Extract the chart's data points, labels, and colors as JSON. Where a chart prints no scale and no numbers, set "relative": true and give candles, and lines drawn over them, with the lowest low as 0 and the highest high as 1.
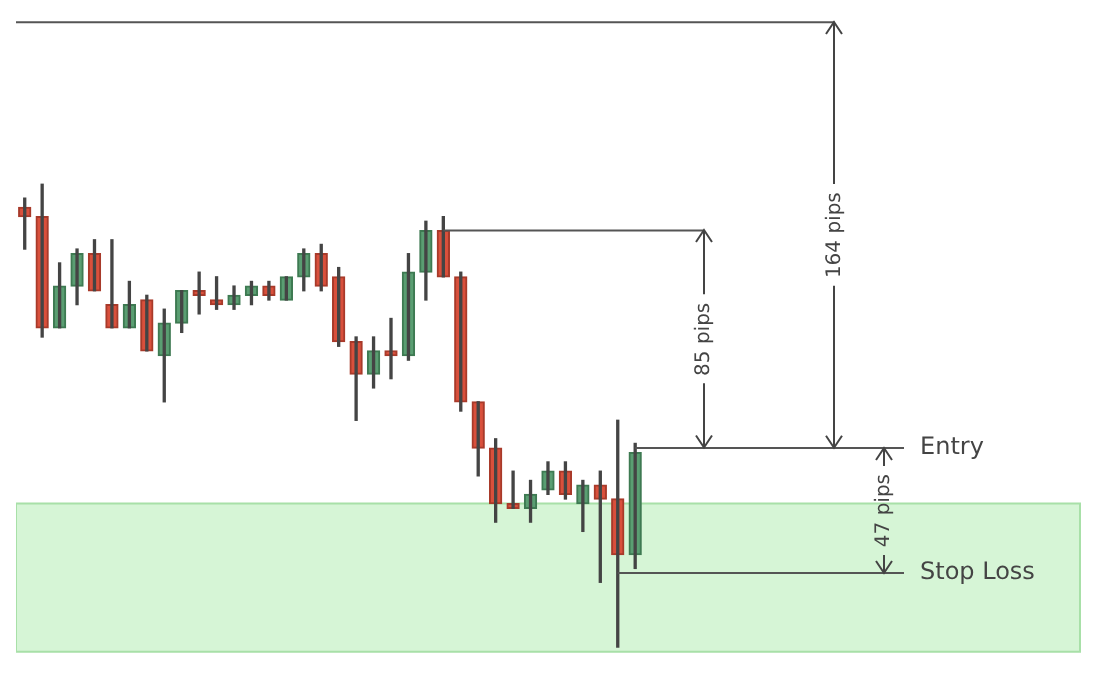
{
  "chart_data": {
    "type": "candlestick",
    "relative": true,
    "categories": [
      null,
      null,
      null,
      null,
      null,
      null,
      null,
      null,
      null,
      null,
      null,
      null,
      null,
      null,
      null,
      null,
      null,
      null,
      null,
      null,
      null,
      null,
      null,
      null,
      null,
      null,
      null,
      null,
      null,
      null,
      null,
      null,
      null,
      null,
      null,
      null
    ],
    "ohlc": [
      [
        0.95,
        0.97,
        0.86,
        0.93
      ],
      [
        0.93,
        1,
        0.67,
        0.69
      ],
      [
        0.69,
        0.83,
        0.69,
        0.78
      ],
      [
        0.78,
        0.86,
        0.74,
        0.85
      ],
      [
        0.85,
        0.88,
        0.77,
        0.77
      ],
      [
        0.74,
        0.88,
        0.69,
        0.69
      ],
      [
        0.69,
        0.79,
        0.69,
        0.74
      ],
      [
        0.75,
        0.76,
        0.64,
        0.64
      ],
      [
        0.63,
        0.73,
        0.53,
        0.7
      ],
      [
        0.7,
        0.77,
        0.68,
        0.77
      ],
      [
        0.77,
        0.81,
        0.72,
        0.76
      ],
      [
        0.75,
        0.8,
        0.73,
        0.74
      ],
      [
        0.74,
        0.78,
        0.73,
        0.76
      ],
      [
        0.76,
        0.79,
        0.74,
        0.78
      ],
      [
        0.78,
        0.79,
        0.75,
        0.76
      ],
      [
        0.75,
        0.8,
        0.75,
        0.8
      ],
      [
        0.8,
        0.86,
        0.77,
        0.85
      ],
      [
        0.85,
        0.87,
        0.77,
        0.78
      ],
      [
        0.8,
        0.82,
        0.65,
        0.66
      ],
      [
        0.66,
        0.67,
        0.49,
        0.59
      ],
      [
        0.59,
        0.67,
        0.56,
        0.64
      ],
      [
        0.64,
        0.71,
        0.58,
        0.63
      ],
      [
        0.63,
        0.85,
        0.62,
        0.81
      ],
      [
        0.81,
        0.92,
        0.75,
        0.9
      ],
      [
        0.9,
        0.93,
        0.8,
        0.8
      ],
      [
        0.8,
        0.81,
        0.51,
        0.53
      ],
      [
        0.53,
        0.53,
        0.37,
        0.43
      ],
      [
        0.43,
        0.45,
        0.27,
        0.31
      ],
      [
        0.31,
        0.38,
        0.3,
        0.3
      ],
      [
        0.3,
        0.36,
        0.27,
        0.33
      ],
      [
        0.34,
        0.4,
        0.33,
        0.38
      ],
      [
        0.38,
        0.4,
        0.32,
        0.33
      ],
      [
        0.31,
        0.36,
        0.25,
        0.35
      ],
      [
        0.35,
        0.38,
        0.14,
        0.32
      ],
      [
        0.32,
        0.49,
        0,
        0.2
      ],
      [
        0.2,
        0.44,
        0.17,
        0.42
      ]
    ],
    "ref_lines": [
      {
        "axis": "y",
        "value": 0.9,
        "color": "#555555"
      },
      {
        "axis": "y",
        "value": 1.35,
        "color": "#555555"
      },
      {
        "axis": "y",
        "value": 0.43,
        "label": "Entry",
        "color": "#555555"
      },
      {
        "axis": "y",
        "value": 0.16,
        "label": "Stop Loss",
        "color": "#555555"
      }
    ],
    "bands": [
      {
        "axis": "y",
        "from": -0.01,
        "to": 0.31,
        "color": "#d6f5d6"
      }
    ],
    "annotations": [
      "85 pips",
      "164 pips",
      "47 pips"
    ]
  }
}
